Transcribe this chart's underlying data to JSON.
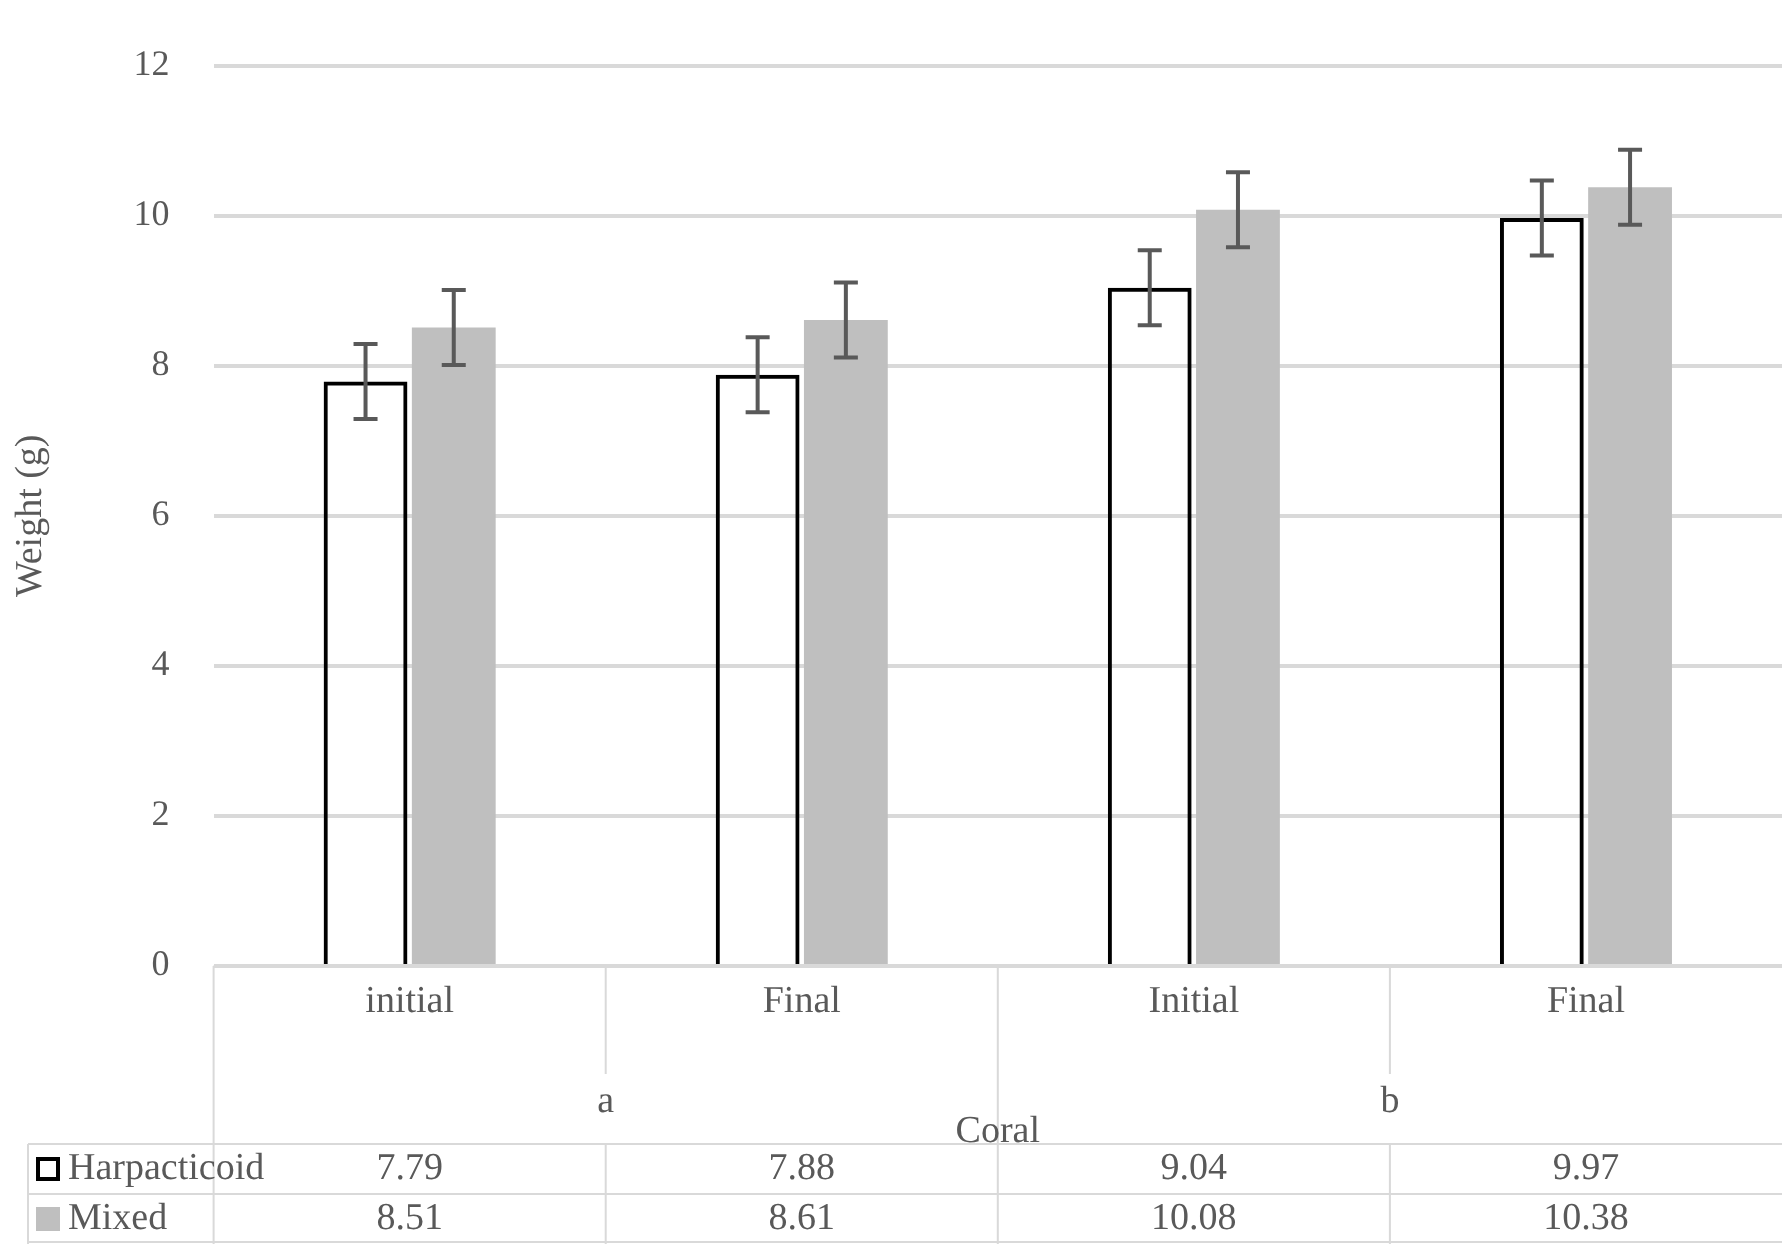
{
  "chart_data": {
    "type": "bar",
    "categories": [
      "initial",
      "Final",
      "Initial",
      "Final"
    ],
    "xlabel": "Coral",
    "ylabel": "Weight (g)",
    "annotations": [
      "a",
      "b"
    ],
    "series": [
      {
        "name": "Harpacticoid",
        "color": "#000000",
        "values": [
          7.79,
          7.88,
          9.04,
          9.97
        ],
        "errors": [
          0.5,
          0.5,
          0.5,
          0.5
        ]
      },
      {
        "name": "Mixed",
        "color": "#bfbfbf",
        "values": [
          8.51,
          8.61,
          10.08,
          10.38
        ],
        "errors": [
          0.5,
          0.5,
          0.5,
          0.5
        ]
      }
    ],
    "ylim": [
      0,
      12
    ],
    "yticks": [
      0,
      2,
      4,
      6,
      8,
      10,
      12
    ],
    "grid": "y",
    "legend": "bottom",
    "data_labels": true
  }
}
